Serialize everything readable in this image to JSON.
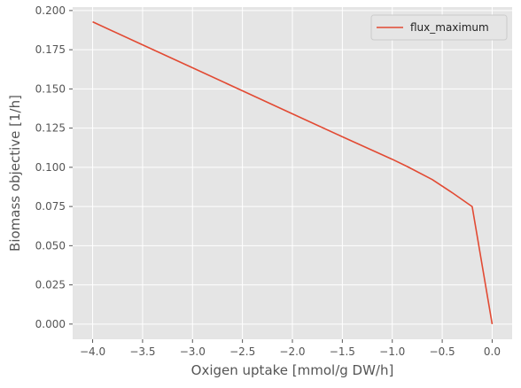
{
  "chart_data": {
    "type": "line",
    "title": "",
    "xlabel": "Oxigen uptake [mmol/g DW/h]",
    "ylabel": "Biomass objective [1/h]",
    "xlim": [
      -4.2,
      0.2
    ],
    "ylim": [
      -0.0097,
      0.2022
    ],
    "xticks": [
      -4.0,
      -3.5,
      -3.0,
      -2.5,
      -2.0,
      -1.5,
      -1.0,
      -0.5,
      0.0
    ],
    "xtick_labels": [
      "−4.0",
      "−3.5",
      "−3.0",
      "−2.5",
      "−2.0",
      "−1.5",
      "−1.0",
      "−0.5",
      "0.0"
    ],
    "yticks": [
      0.0,
      0.025,
      0.05,
      0.075,
      0.1,
      0.125,
      0.15,
      0.175,
      0.2
    ],
    "ytick_labels": [
      "0.000",
      "0.025",
      "0.050",
      "0.075",
      "0.100",
      "0.125",
      "0.150",
      "0.175",
      "0.200"
    ],
    "grid": true,
    "legend_position": "top-right",
    "series": [
      {
        "name": "flux_maximum",
        "color": "#e24a33",
        "x": [
          -4.0,
          -3.5,
          -3.0,
          -2.5,
          -2.0,
          -1.5,
          -1.0,
          -0.85,
          -0.6,
          -0.4,
          -0.2,
          0.0
        ],
        "y": [
          0.1928,
          0.1781,
          0.1635,
          0.1488,
          0.1341,
          0.1195,
          0.1051,
          0.1005,
          0.0922,
          0.0838,
          0.0749,
          0.0
        ]
      }
    ]
  }
}
